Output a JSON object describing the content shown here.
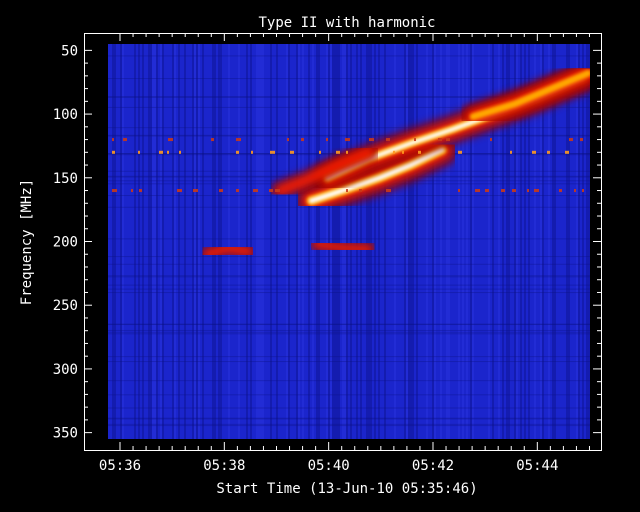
{
  "chart_data": {
    "type": "heatmap",
    "title": "Type II with harmonic",
    "xlabel": "Start Time (13-Jun-10 05:35:46)",
    "ylabel": "Frequency [MHz]",
    "x_range_minutes": [
      0,
      9.24
    ],
    "x_ticks": [
      {
        "label": "05:36",
        "minute": 0.23
      },
      {
        "label": "05:38",
        "minute": 2.23
      },
      {
        "label": "05:40",
        "minute": 4.23
      },
      {
        "label": "05:42",
        "minute": 6.23
      },
      {
        "label": "05:44",
        "minute": 8.23
      }
    ],
    "y_range": [
      45,
      355
    ],
    "y_reversed": true,
    "y_ticks": [
      50,
      100,
      150,
      200,
      250,
      300,
      350
    ],
    "colormap": [
      "#1a23c8",
      "#8b0000",
      "#ff2200",
      "#ffb000",
      "#ffffff"
    ],
    "background_color": "#1a23c8",
    "bursts": [
      {
        "name": "fundamental",
        "points": [
          [
            3.9,
            168
          ],
          [
            4.5,
            160
          ],
          [
            5.2,
            150
          ],
          [
            5.8,
            140
          ],
          [
            6.4,
            128
          ]
        ],
        "intensity": 1.0
      },
      {
        "name": "harmonic",
        "points": [
          [
            4.2,
            150
          ],
          [
            5.0,
            135
          ],
          [
            5.8,
            123
          ],
          [
            6.6,
            112
          ],
          [
            7.4,
            100
          ],
          [
            8.2,
            88
          ],
          [
            9.1,
            72
          ]
        ],
        "intensity": 0.85
      },
      {
        "name": "harmonic-upper",
        "points": [
          [
            7.0,
            102
          ],
          [
            7.8,
            92
          ],
          [
            8.5,
            80
          ],
          [
            9.2,
            68
          ]
        ],
        "intensity": 0.7
      },
      {
        "name": "precursor",
        "points": [
          [
            3.3,
            160
          ],
          [
            3.8,
            152
          ],
          [
            4.4,
            140
          ],
          [
            5.0,
            130
          ]
        ],
        "intensity": 0.45
      },
      {
        "name": "faint-band",
        "points": [
          [
            1.9,
            210
          ],
          [
            2.3,
            205
          ],
          [
            2.7,
            208
          ]
        ],
        "intensity": 0.35
      },
      {
        "name": "faint-band-2",
        "points": [
          [
            4.0,
            202
          ],
          [
            4.5,
            205
          ],
          [
            5.0,
            206
          ]
        ],
        "intensity": 0.3
      }
    ],
    "interference_freqs": [
      120,
      130,
      160
    ]
  }
}
